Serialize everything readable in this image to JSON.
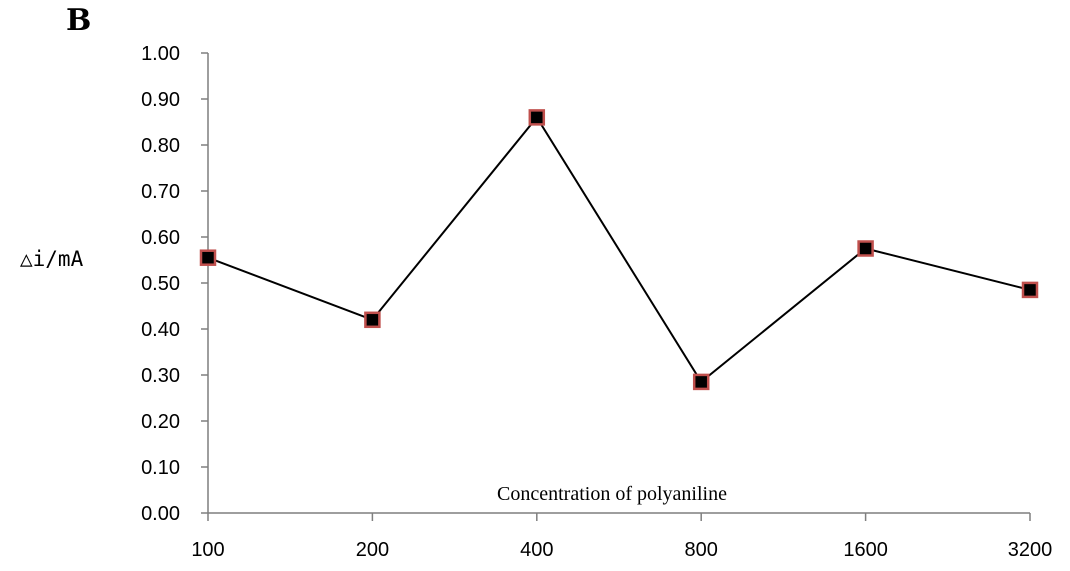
{
  "panel_label": "B",
  "chart_data": {
    "type": "line",
    "categories": [
      "100",
      "200",
      "400",
      "800",
      "1600",
      "3200"
    ],
    "series": [
      {
        "values": [
          0.555,
          0.42,
          0.86,
          0.285,
          0.575,
          0.485
        ]
      }
    ],
    "xlabel": "Concentration of polyaniline",
    "ylabel": "△i/mA",
    "ylim": [
      0,
      1.0
    ],
    "yticks": [
      "0.00",
      "0.10",
      "0.20",
      "0.30",
      "0.40",
      "0.50",
      "0.60",
      "0.70",
      "0.80",
      "0.90",
      "1.00"
    ],
    "grid": false,
    "colors": {
      "line": "#000000",
      "marker_fill": "#000000",
      "marker_edge": "#c0504d",
      "axis": "#7f7f7f"
    }
  }
}
